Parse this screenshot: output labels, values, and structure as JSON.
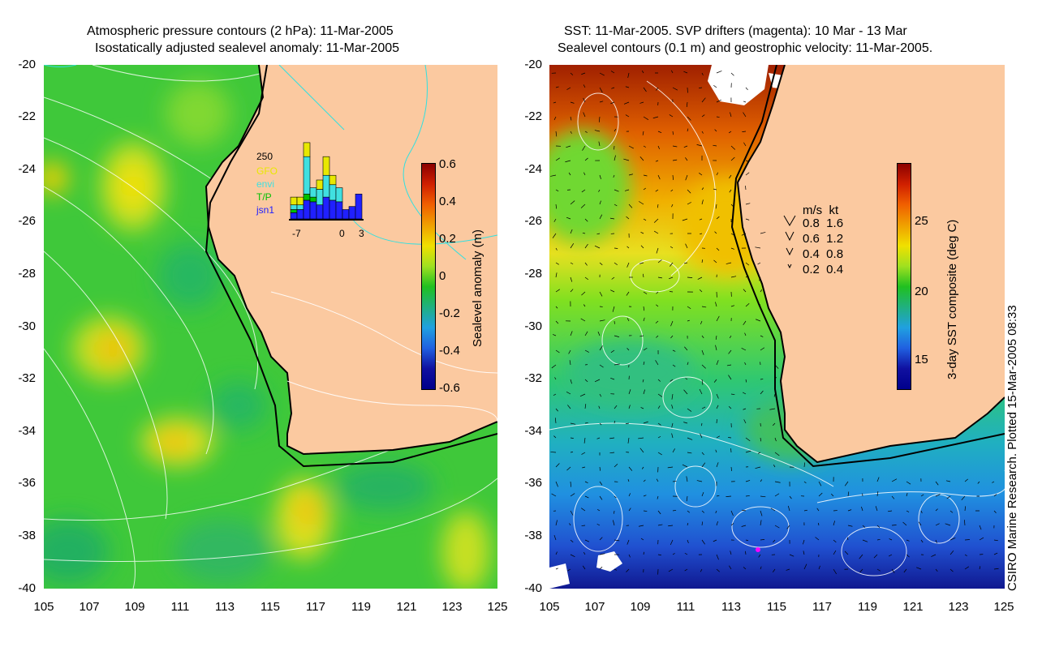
{
  "left_panel": {
    "title_line1": "Atmospheric pressure contours (2 hPa): 11-Mar-2005",
    "title_line2": "Isostatically adjusted sealevel anomaly: 11-Mar-2005",
    "colorbar_title": "Sealevel anomaly (m)",
    "colorbar_ticks": [
      "0.6",
      "0.4",
      "0.2",
      "0",
      "-0.2",
      "-0.4",
      "-0.6"
    ],
    "inset": {
      "ymax_label": "250",
      "legend": [
        {
          "label": "GFO",
          "color": "#e8e800"
        },
        {
          "label": "envi",
          "color": "#40e0e0"
        },
        {
          "label": "T/P",
          "color": "#00c000"
        },
        {
          "label": "jsn1",
          "color": "#2020ff"
        }
      ],
      "x_ticks": [
        "-7",
        "0",
        "3"
      ],
      "bars": [
        {
          "jsn1": 20,
          "tp": 10,
          "envi": 15,
          "gfo": 25
        },
        {
          "jsn1": 30,
          "tp": 0,
          "envi": 15,
          "gfo": 25
        },
        {
          "jsn1": 60,
          "tp": 20,
          "envi": 120,
          "gfo": 45
        },
        {
          "jsn1": 55,
          "tp": 15,
          "envi": 30,
          "gfo": 0
        },
        {
          "jsn1": 45,
          "tp": 0,
          "envi": 50,
          "gfo": 30
        },
        {
          "jsn1": 70,
          "tp": 0,
          "envi": 70,
          "gfo": 60
        },
        {
          "jsn1": 60,
          "tp": 0,
          "envi": 50,
          "gfo": 30
        },
        {
          "jsn1": 55,
          "tp": 0,
          "envi": 45,
          "gfo": 0
        },
        {
          "jsn1": 30,
          "tp": 0,
          "envi": 0,
          "gfo": 0
        },
        {
          "jsn1": 40,
          "tp": 0,
          "envi": 0,
          "gfo": 0
        },
        {
          "jsn1": 80,
          "tp": 0,
          "envi": 0,
          "gfo": 0
        }
      ]
    }
  },
  "right_panel": {
    "title_line1": "SST: 11-Mar-2005. SVP drifters (magenta): 10 Mar - 13 Mar",
    "title_line2": "Sealevel contours (0.1 m) and geostrophic velocity: 11-Mar-2005.",
    "colorbar_title": "3-day SST composite (deg C)",
    "colorbar_ticks": [
      "25",
      "20",
      "15"
    ],
    "velocity_legend": {
      "header": "m/s  kt",
      "rows": [
        "0.8  1.6",
        "0.6  1.2",
        "0.4  0.8",
        "0.2  0.4"
      ]
    }
  },
  "y_ticks": [
    "-20",
    "-22",
    "-24",
    "-26",
    "-28",
    "-30",
    "-32",
    "-34",
    "-36",
    "-38",
    "-40"
  ],
  "x_ticks": [
    "105",
    "107",
    "109",
    "111",
    "113",
    "115",
    "117",
    "119",
    "121",
    "123",
    "125"
  ],
  "credit": "CSIRO Marine Research. Plotted 15-Mar-2005 08:33",
  "colors": {
    "land": "#fbc9a0",
    "ocean_left": "#3cc83c",
    "coast": "#000000"
  }
}
